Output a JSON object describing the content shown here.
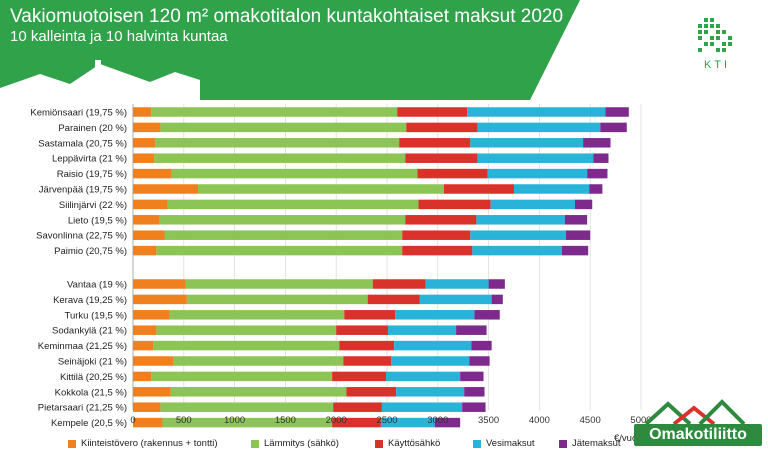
{
  "header": {
    "title": "Vakiomuotoisen 120 m² omakotitalon kuntakohtaiset maksut 2020",
    "subtitle": "10 kalleinta ja 10 halvinta kuntaa"
  },
  "logos": {
    "kti": "KTI",
    "omakotiliitto": "Omakotiliitto"
  },
  "colors": {
    "header_green": "#2fa24a",
    "kiinteistovero": "#f07f1e",
    "lammitys": "#8cc456",
    "kayttosahko": "#d8322a",
    "vesimaksut": "#29b3d9",
    "jatemaksut": "#7e2a8c"
  },
  "chart_data": {
    "type": "bar",
    "orientation": "horizontal",
    "stacked": true,
    "xlim": [
      0,
      5000
    ],
    "xticks": [
      "0",
      "500",
      "1000",
      "1500",
      "2000",
      "2500",
      "3000",
      "3500",
      "4000",
      "4500",
      "5000"
    ],
    "xunit": "€/vuosi",
    "legend": [
      "Kiinteistövero (rakennus + tontti)",
      "Lämmitys (sähkö)",
      "Käyttösähkö",
      "Vesimaksut",
      "Jätemaksut"
    ],
    "groups": [
      {
        "categories": [
          "Kemiönsaari (19,75 %)",
          "Parainen (20 %)",
          "Sastamala (20,75 %)",
          "Leppävirta (21 %)",
          "Raisio (19,75 %)",
          "Järvenpää (19,75 %)",
          "Siilinjärvi (22 %)",
          "Lieto (19,5 %)",
          "Savonlinna (22,75 %)",
          "Paimio (20,75 %)"
        ],
        "series": [
          {
            "name": "Kiinteistövero (rakennus + tontti)",
            "values": [
              180,
              270,
              220,
              210,
              380,
              640,
              340,
              260,
              310,
              230
            ]
          },
          {
            "name": "Lämmitys (sähkö)",
            "values": [
              2420,
              2420,
              2400,
              2470,
              2420,
              2420,
              2470,
              2420,
              2340,
              2420
            ]
          },
          {
            "name": "Käyttösähkö",
            "values": [
              690,
              700,
              700,
              710,
              690,
              690,
              710,
              700,
              670,
              690
            ]
          },
          {
            "name": "Vesimaksut",
            "values": [
              1360,
              1210,
              1110,
              1140,
              980,
              740,
              830,
              870,
              940,
              880
            ]
          },
          {
            "name": "Jätemaksut",
            "values": [
              230,
              260,
              270,
              150,
              200,
              130,
              170,
              220,
              240,
              260
            ]
          }
        ]
      },
      {
        "categories": [
          "Vantaa (19 %)",
          "Kerava (19,25 %)",
          "Turku (19,5 %)",
          "Sodankylä (21 %)",
          "Keminmaa (21,25 %)",
          "Seinäjoki (21 %)",
          "Kittilä (20,25 %)",
          "Kokkola (21,5 %)",
          "Pietarsaari (21,25 %)",
          "Kempele (20,5 %)"
        ],
        "series": [
          {
            "name": "Kiinteistövero (rakennus + tontti)",
            "values": [
              520,
              530,
              360,
              230,
              200,
              400,
              180,
              370,
              270,
              290
            ]
          },
          {
            "name": "Lämmitys (sähkö)",
            "values": [
              1840,
              1780,
              1720,
              1770,
              1830,
              1670,
              1780,
              1730,
              1700,
              1670
            ]
          },
          {
            "name": "Käyttösähkö",
            "values": [
              520,
              510,
              500,
              510,
              540,
              470,
              530,
              490,
              480,
              480
            ]
          },
          {
            "name": "Vesimaksut",
            "values": [
              620,
              710,
              780,
              670,
              760,
              770,
              730,
              670,
              790,
              530
            ]
          },
          {
            "name": "Jätemaksut",
            "values": [
              160,
              110,
              250,
              300,
              200,
              200,
              230,
              200,
              230,
              250
            ]
          }
        ]
      }
    ]
  }
}
